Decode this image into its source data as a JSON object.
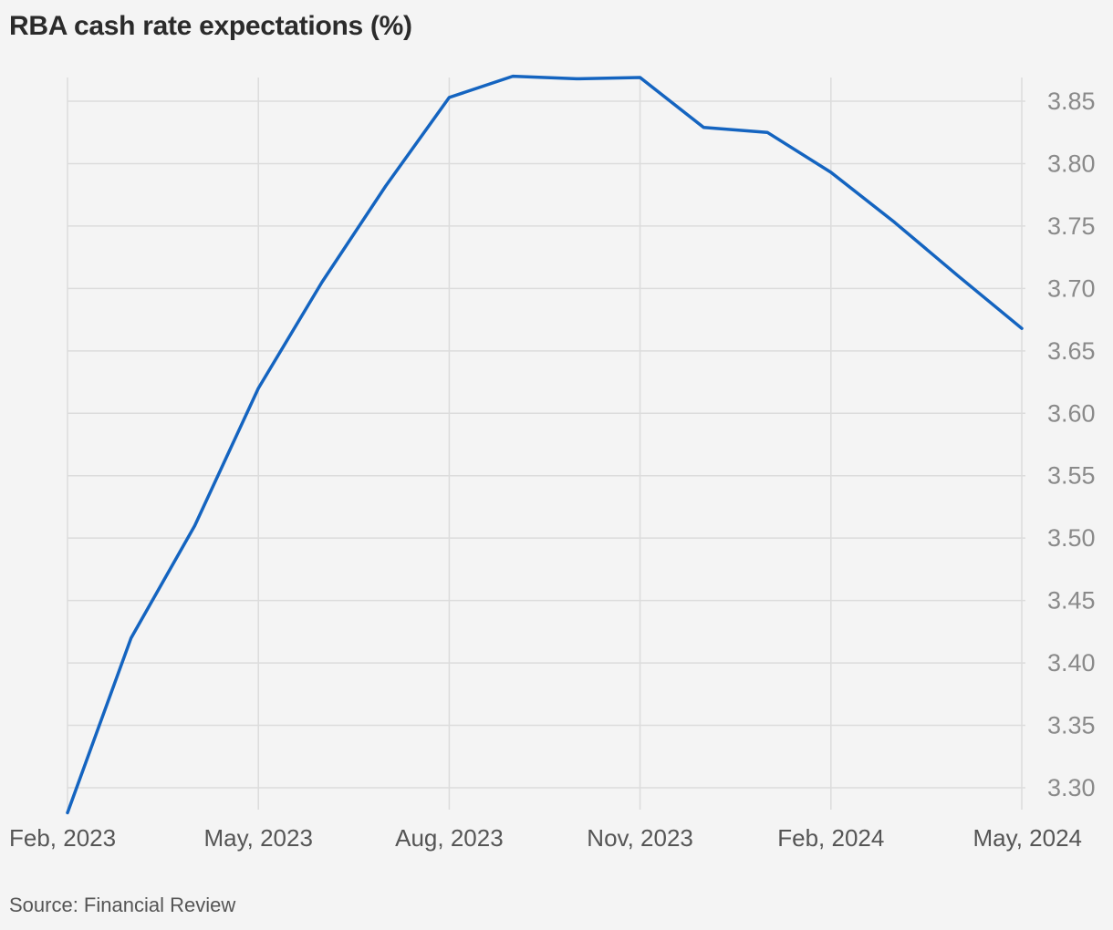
{
  "chart_data": {
    "type": "line",
    "title": "RBA cash rate expectations (%)",
    "xlabel": "",
    "ylabel": "",
    "x": [
      "2023-02-01",
      "2023-03-01",
      "2023-04-01",
      "2023-05-01",
      "2023-06-01",
      "2023-07-01",
      "2023-08-01",
      "2023-09-01",
      "2023-10-01",
      "2023-11-01",
      "2023-12-01",
      "2024-01-01",
      "2024-02-01",
      "2024-03-01",
      "2024-04-01",
      "2024-05-01"
    ],
    "series": [
      {
        "values": [
          3.28,
          3.42,
          3.51,
          3.62,
          3.705,
          3.782,
          3.853,
          3.87,
          3.868,
          3.869,
          3.829,
          3.825,
          3.793,
          3.753,
          3.71,
          3.668
        ],
        "color": "#1464c0"
      }
    ],
    "x_ticks": [
      "Feb, 2023",
      "May, 2023",
      "Aug, 2023",
      "Nov, 2023",
      "Feb, 2024",
      "May, 2024"
    ],
    "x_tick_index": [
      0,
      3,
      6,
      9,
      12,
      15
    ],
    "y_ticks": [
      "3.30",
      "3.35",
      "3.40",
      "3.45",
      "3.50",
      "3.55",
      "3.60",
      "3.65",
      "3.70",
      "3.75",
      "3.80",
      "3.85"
    ],
    "ylim": [
      3.28,
      3.88
    ],
    "y_axis_side": "right",
    "grid": true
  },
  "source": "Source: Financial Review"
}
